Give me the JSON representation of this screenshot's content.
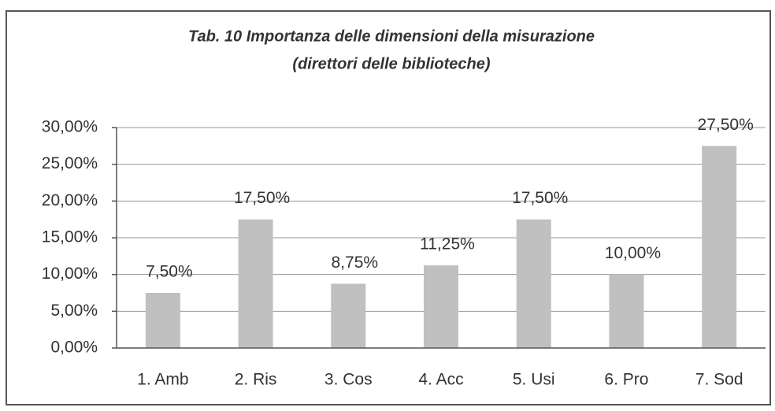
{
  "chart_data": {
    "type": "bar",
    "title": [
      "Tab. 10   Importanza delle dimensioni della misurazione",
      "(direttori delle biblioteche)"
    ],
    "categories": [
      "1. Amb",
      "2. Ris",
      "3. Cos",
      "4. Acc",
      "5. Usi",
      "6. Pro",
      "7. Sod"
    ],
    "values": [
      7.5,
      17.5,
      8.75,
      11.25,
      17.5,
      10,
      27.5
    ],
    "value_labels": [
      "7,50%",
      "17,50%",
      "8,75%",
      "11,25%",
      "17,50%",
      "10,00%",
      "27,50%"
    ],
    "color": "#c0c0c0",
    "ylim": [
      0,
      30
    ],
    "yticks": [
      {
        "value": 0,
        "label": "0,00%"
      },
      {
        "value": 5,
        "label": "5,00%"
      },
      {
        "value": 10,
        "label": "10,00%"
      },
      {
        "value": 15,
        "label": "15,00%"
      },
      {
        "value": 20,
        "label": "20,00%"
      },
      {
        "value": 25,
        "label": "25,00%"
      },
      {
        "value": 30,
        "label": "30,00%"
      }
    ],
    "grid": true
  }
}
